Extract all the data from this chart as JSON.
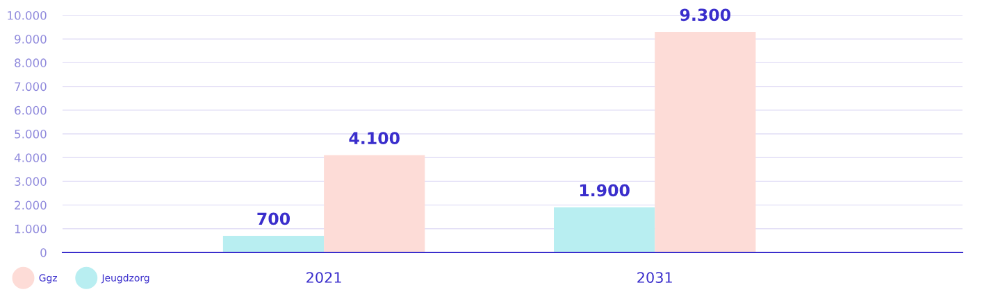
{
  "chart_data": {
    "type": "bar",
    "categories": [
      "2021",
      "2031"
    ],
    "series": [
      {
        "name": "Jeugdzorg",
        "color": "#b8eef1",
        "values": [
          700,
          1900
        ],
        "value_labels": [
          "700",
          "1.900"
        ]
      },
      {
        "name": "Ggz",
        "color": "#fddcd7",
        "values": [
          4100,
          9300
        ],
        "value_labels": [
          "4.100",
          "9.300"
        ]
      }
    ],
    "ylim": [
      0,
      10000
    ],
    "yticks": [
      0,
      {
        "value": 1000,
        "label": "1.000"
      },
      {
        "value": 2000,
        "label": "2.000"
      },
      {
        "value": 3000,
        "label": "3.000"
      },
      {
        "value": 4000,
        "label": "4.000"
      },
      {
        "value": 5000,
        "label": "5.000"
      },
      {
        "value": 6000,
        "label": "6.000"
      },
      {
        "value": 7000,
        "label": "7.000"
      },
      {
        "value": 8000,
        "label": "8.000"
      },
      {
        "value": 9000,
        "label": "9.000"
      },
      {
        "value": 10000,
        "label": "10.000"
      }
    ],
    "grid": "y",
    "legend": "bottom left"
  }
}
